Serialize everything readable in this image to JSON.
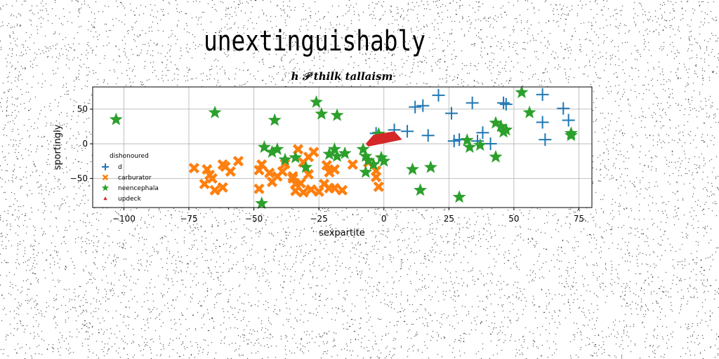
{
  "page_title": "unextinguishably",
  "chart_data": {
    "type": "scatter",
    "title": "h 𝒫 thilk tallaism",
    "xlabel": "sexpartite",
    "ylabel": "sportingly",
    "xlim": [
      -112,
      80
    ],
    "ylim": [
      -92,
      82
    ],
    "x_ticks": [
      -100,
      -75,
      -50,
      -25,
      0,
      25,
      50,
      75
    ],
    "x_tick_labels": [
      "−100",
      "−75",
      "−50",
      "−25",
      "0",
      "25",
      "50",
      "75"
    ],
    "y_ticks": [
      -50,
      0,
      50
    ],
    "y_tick_labels": [
      "−50",
      "0",
      "50"
    ],
    "grid": true,
    "legend": {
      "title": "dishonoured",
      "placement": "center-left"
    },
    "series": [
      {
        "name": "d",
        "marker": "plus",
        "color": "#1f77b4",
        "points": [
          [
            21,
            70
          ],
          [
            12,
            53
          ],
          [
            15,
            55
          ],
          [
            26,
            44
          ],
          [
            34,
            59
          ],
          [
            46,
            59
          ],
          [
            47,
            57
          ],
          [
            61,
            71
          ],
          [
            69,
            51
          ],
          [
            71,
            34
          ],
          [
            61,
            31
          ],
          [
            4,
            20
          ],
          [
            9,
            18
          ],
          [
            17,
            12
          ],
          [
            38,
            16
          ],
          [
            27,
            4
          ],
          [
            29,
            6
          ],
          [
            36,
            4
          ],
          [
            41,
            0
          ],
          [
            62,
            6
          ],
          [
            -3,
            15
          ]
        ]
      },
      {
        "name": "carburator",
        "marker": "x",
        "color": "#ff7f0e",
        "points": [
          [
            -73,
            -35
          ],
          [
            -68,
            -37
          ],
          [
            -67,
            -45
          ],
          [
            -69,
            -58
          ],
          [
            -66,
            -50
          ],
          [
            -61,
            -33
          ],
          [
            -62,
            -30
          ],
          [
            -59,
            -40
          ],
          [
            -56,
            -25
          ],
          [
            -62,
            -63
          ],
          [
            -65,
            -67
          ],
          [
            -48,
            -38
          ],
          [
            -47,
            -30
          ],
          [
            -44,
            -42
          ],
          [
            -41,
            -47
          ],
          [
            -39,
            -40
          ],
          [
            -38,
            -29
          ],
          [
            -35,
            -47
          ],
          [
            -34,
            -58
          ],
          [
            -32,
            -57
          ],
          [
            -34,
            -68
          ],
          [
            -31,
            -70
          ],
          [
            -28,
            -66
          ],
          [
            -25,
            -69
          ],
          [
            -23,
            -58
          ],
          [
            -21,
            -64
          ],
          [
            -19,
            -64
          ],
          [
            -16,
            -67
          ],
          [
            -33,
            -8
          ],
          [
            -29,
            -19
          ],
          [
            -31,
            -27
          ],
          [
            -27,
            -12
          ],
          [
            -22,
            -31
          ],
          [
            -19,
            -37
          ],
          [
            -21,
            -41
          ],
          [
            -12,
            -30
          ],
          [
            -6,
            -27
          ],
          [
            -3,
            -39
          ],
          [
            -3,
            -48
          ],
          [
            -2,
            -62
          ],
          [
            -48,
            -65
          ],
          [
            -43,
            -55
          ],
          [
            -35,
            -50
          ],
          [
            -29,
            -44
          ]
        ]
      },
      {
        "name": "neencephala",
        "marker": "star",
        "color": "#2ca02c",
        "points": [
          [
            -103,
            35
          ],
          [
            -65,
            45
          ],
          [
            -42,
            34
          ],
          [
            -26,
            60
          ],
          [
            -24,
            43
          ],
          [
            -18,
            41
          ],
          [
            -46,
            -5
          ],
          [
            -41,
            -8
          ],
          [
            -38,
            -23
          ],
          [
            -34,
            -20
          ],
          [
            -30,
            -34
          ],
          [
            -19,
            -8
          ],
          [
            -18,
            -18
          ],
          [
            -15,
            -14
          ],
          [
            -8,
            -8
          ],
          [
            -7,
            -18
          ],
          [
            -6,
            -24
          ],
          [
            -7,
            -41
          ],
          [
            -2,
            14
          ],
          [
            -1,
            -20
          ],
          [
            0,
            -25
          ],
          [
            11,
            -37
          ],
          [
            18,
            -34
          ],
          [
            14,
            -67
          ],
          [
            29,
            -77
          ],
          [
            32,
            5
          ],
          [
            33,
            -5
          ],
          [
            37,
            -2
          ],
          [
            43,
            -19
          ],
          [
            45,
            25
          ],
          [
            46,
            17
          ],
          [
            47,
            20
          ],
          [
            56,
            45
          ],
          [
            72,
            15
          ],
          [
            72,
            12
          ],
          [
            53,
            74
          ],
          [
            43,
            30
          ],
          [
            -47,
            -86
          ],
          [
            -43,
            -12
          ],
          [
            -21,
            -15
          ],
          [
            -4,
            -30
          ]
        ]
      },
      {
        "name": "updeck",
        "marker": "triangle",
        "color": "#d62728",
        "polygon": [
          [
            -6,
            -4
          ],
          [
            7,
            6
          ],
          [
            4,
            18
          ],
          [
            -4,
            13
          ],
          [
            -7,
            0
          ]
        ]
      }
    ]
  }
}
